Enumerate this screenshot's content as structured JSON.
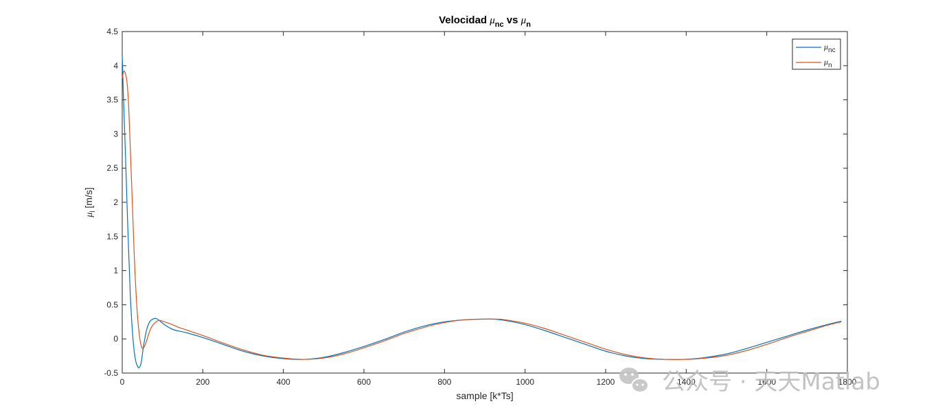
{
  "chart_data": {
    "type": "line",
    "title": {
      "prefix": "Velocidad ",
      "mu1": "μ",
      "sub1": "nc",
      "middle": " vs ",
      "mu2": "μ",
      "sub2": "n"
    },
    "xlabel": "sample [k*Ts]",
    "ylabel": {
      "mu": "μ",
      "sub": "l",
      "unit": " [m/s]"
    },
    "xlim": [
      0,
      1800
    ],
    "ylim": [
      -0.5,
      4.5
    ],
    "xticks": [
      0,
      200,
      400,
      600,
      800,
      1000,
      1200,
      1400,
      1600,
      1800
    ],
    "yticks": [
      -0.5,
      0,
      0.5,
      1,
      1.5,
      2,
      2.5,
      3,
      3.5,
      4,
      4.5
    ],
    "xtick_labels": [
      "0",
      "200",
      "400",
      "600",
      "800",
      "1000",
      "1200",
      "1400",
      "1600",
      "1800"
    ],
    "ytick_labels": [
      "-0.5",
      "0",
      "0.5",
      "1",
      "1.5",
      "2",
      "2.5",
      "3",
      "3.5",
      "4",
      "4.5"
    ],
    "legend_position": "top-right",
    "grid": false,
    "series": [
      {
        "legend": {
          "mu": "μ",
          "sub": "nc"
        },
        "color": "#0072BD",
        "x": [
          0,
          3,
          8,
          14,
          20,
          26,
          32,
          38,
          42,
          47,
          53,
          60,
          68,
          76,
          83,
          90,
          100,
          115,
          130,
          160,
          200,
          250,
          300,
          350,
          400,
          450,
          500,
          550,
          600,
          650,
          700,
          750,
          800,
          850,
          900,
          920,
          950,
          1000,
          1050,
          1100,
          1150,
          1200,
          1250,
          1300,
          1350,
          1385,
          1420,
          1450,
          1500,
          1550,
          1600,
          1650,
          1700,
          1750,
          1785
        ],
        "y": [
          4.15,
          3.55,
          2.7,
          1.6,
          0.65,
          0.05,
          -0.28,
          -0.4,
          -0.42,
          -0.35,
          -0.1,
          0.12,
          0.25,
          0.29,
          0.3,
          0.28,
          0.23,
          0.17,
          0.13,
          0.09,
          0.02,
          -0.08,
          -0.18,
          -0.25,
          -0.29,
          -0.3,
          -0.27,
          -0.2,
          -0.11,
          -0.01,
          0.1,
          0.19,
          0.25,
          0.28,
          0.29,
          0.29,
          0.27,
          0.21,
          0.12,
          0.02,
          -0.08,
          -0.18,
          -0.25,
          -0.29,
          -0.3,
          -0.3,
          -0.29,
          -0.27,
          -0.22,
          -0.14,
          -0.05,
          0.04,
          0.13,
          0.21,
          0.26
        ]
      },
      {
        "legend": {
          "mu": "μ",
          "sub": "n"
        },
        "color": "#D95319",
        "x": [
          0,
          4,
          8,
          12,
          16,
          20,
          25,
          30,
          36,
          42,
          48,
          53,
          58,
          64,
          70,
          77,
          84,
          90,
          95,
          100,
          110,
          120,
          140,
          160,
          200,
          250,
          300,
          350,
          400,
          450,
          500,
          550,
          600,
          650,
          700,
          750,
          800,
          850,
          900,
          930,
          950,
          1000,
          1050,
          1100,
          1150,
          1200,
          1250,
          1300,
          1350,
          1400,
          1450,
          1500,
          1550,
          1600,
          1650,
          1700,
          1750,
          1785
        ],
        "y": [
          3.82,
          3.92,
          3.88,
          3.75,
          3.4,
          2.8,
          2.0,
          1.2,
          0.5,
          0.08,
          -0.12,
          -0.13,
          -0.07,
          0.04,
          0.14,
          0.21,
          0.25,
          0.27,
          0.27,
          0.26,
          0.24,
          0.22,
          0.17,
          0.13,
          0.05,
          -0.06,
          -0.16,
          -0.24,
          -0.28,
          -0.3,
          -0.28,
          -0.22,
          -0.13,
          -0.03,
          0.08,
          0.17,
          0.24,
          0.28,
          0.29,
          0.29,
          0.28,
          0.23,
          0.15,
          0.05,
          -0.05,
          -0.15,
          -0.23,
          -0.28,
          -0.3,
          -0.3,
          -0.28,
          -0.24,
          -0.17,
          -0.08,
          0.02,
          0.11,
          0.2,
          0.25
        ]
      }
    ]
  },
  "watermark": {
    "icon": "wechat-icon",
    "text": "公众号 · 天天Matlab"
  }
}
